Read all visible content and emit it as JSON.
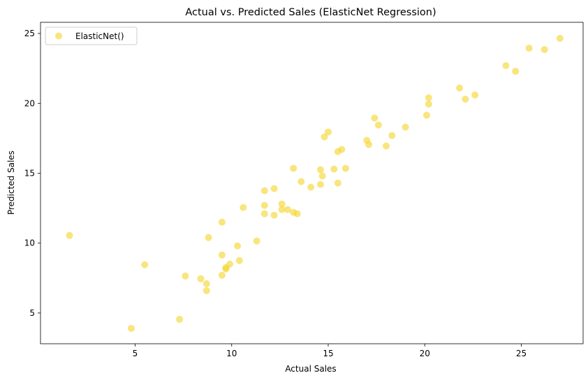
{
  "chart_data": {
    "type": "scatter",
    "title": "Actual vs. Predicted Sales (ElasticNet Regression)",
    "xlabel": "Actual Sales",
    "ylabel": "Predicted Sales",
    "xlim": [
      0.1,
      28.2
    ],
    "ylim": [
      2.8,
      25.8
    ],
    "xticks": [
      5,
      10,
      15,
      20,
      25
    ],
    "yticks": [
      5,
      10,
      15,
      20,
      25
    ],
    "grid": false,
    "legend": {
      "position": "top-left"
    },
    "series": [
      {
        "name": "ElasticNet()",
        "color": "#f5d327",
        "opacity": 0.6,
        "points": [
          [
            1.6,
            10.55
          ],
          [
            4.8,
            3.9
          ],
          [
            5.5,
            8.45
          ],
          [
            7.3,
            4.55
          ],
          [
            7.6,
            7.65
          ],
          [
            8.4,
            7.45
          ],
          [
            8.7,
            7.1
          ],
          [
            8.7,
            6.6
          ],
          [
            8.8,
            10.4
          ],
          [
            9.5,
            11.5
          ],
          [
            9.5,
            9.15
          ],
          [
            9.5,
            7.7
          ],
          [
            9.7,
            8.25
          ],
          [
            9.7,
            8.15
          ],
          [
            9.9,
            8.5
          ],
          [
            10.3,
            9.8
          ],
          [
            10.4,
            8.75
          ],
          [
            10.6,
            12.55
          ],
          [
            11.3,
            10.15
          ],
          [
            11.7,
            13.75
          ],
          [
            11.7,
            12.7
          ],
          [
            11.7,
            12.1
          ],
          [
            12.2,
            13.9
          ],
          [
            12.2,
            12.0
          ],
          [
            12.6,
            12.8
          ],
          [
            12.6,
            12.4
          ],
          [
            12.9,
            12.4
          ],
          [
            13.2,
            15.35
          ],
          [
            13.2,
            12.2
          ],
          [
            13.4,
            12.1
          ],
          [
            13.6,
            14.4
          ],
          [
            14.1,
            14.0
          ],
          [
            14.6,
            15.25
          ],
          [
            14.6,
            14.2
          ],
          [
            14.7,
            14.8
          ],
          [
            14.8,
            17.6
          ],
          [
            15.0,
            17.95
          ],
          [
            15.3,
            15.3
          ],
          [
            15.5,
            16.55
          ],
          [
            15.5,
            14.3
          ],
          [
            15.7,
            16.7
          ],
          [
            15.9,
            15.35
          ],
          [
            17.0,
            17.35
          ],
          [
            17.1,
            17.05
          ],
          [
            17.4,
            18.95
          ],
          [
            17.6,
            18.45
          ],
          [
            18.0,
            16.95
          ],
          [
            18.3,
            17.7
          ],
          [
            19.0,
            18.3
          ],
          [
            20.1,
            19.15
          ],
          [
            20.2,
            20.4
          ],
          [
            20.2,
            19.95
          ],
          [
            21.8,
            21.1
          ],
          [
            22.1,
            20.3
          ],
          [
            22.6,
            20.6
          ],
          [
            24.2,
            22.7
          ],
          [
            24.7,
            22.3
          ],
          [
            25.4,
            23.95
          ],
          [
            26.2,
            23.85
          ],
          [
            27.0,
            24.65
          ]
        ]
      }
    ]
  }
}
